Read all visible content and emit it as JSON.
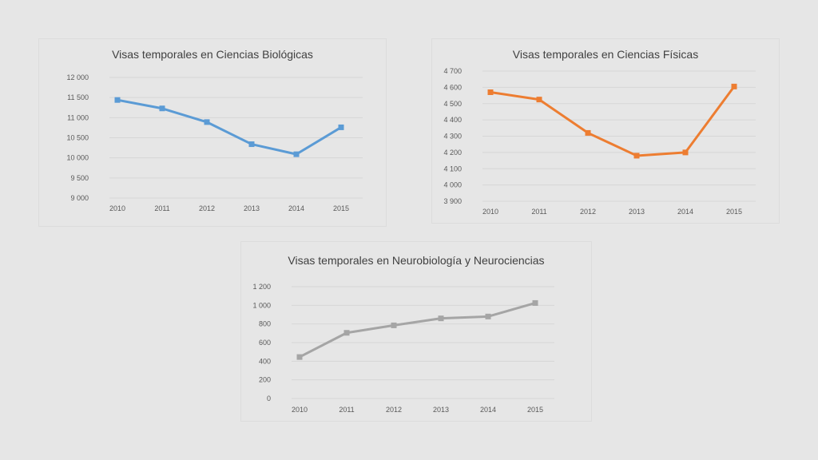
{
  "chart_data": [
    {
      "type": "line",
      "title": "Visas temporales en Ciencias Biológicas",
      "categories": [
        "2010",
        "2011",
        "2012",
        "2013",
        "2014",
        "2015"
      ],
      "series": [
        {
          "values": [
            11440,
            11230,
            10890,
            10340,
            10090,
            10760
          ]
        }
      ],
      "yticks": [
        "9 000",
        "9 500",
        "10 000",
        "10 500",
        "11 000",
        "11 500",
        "12 000"
      ],
      "ylim": [
        9000,
        12000
      ],
      "color": "#5b9bd5",
      "grid": true
    },
    {
      "type": "line",
      "title": "Visas temporales en Ciencias Físicas",
      "categories": [
        "2010",
        "2011",
        "2012",
        "2013",
        "2014",
        "2015"
      ],
      "series": [
        {
          "values": [
            4570,
            4525,
            4320,
            4180,
            4200,
            4605
          ]
        }
      ],
      "yticks": [
        "3 900",
        "4 000",
        "4 100",
        "4 200",
        "4 300",
        "4 400",
        "4 500",
        "4 600",
        "4 700"
      ],
      "ylim": [
        3900,
        4700
      ],
      "color": "#ed7d31",
      "grid": true
    },
    {
      "type": "line",
      "title": "Visas temporales en Neurobiología y Neurociencias",
      "categories": [
        "2010",
        "2011",
        "2012",
        "2013",
        "2014",
        "2015"
      ],
      "series": [
        {
          "values": [
            445,
            705,
            785,
            860,
            880,
            1025
          ]
        }
      ],
      "yticks": [
        "0",
        "200",
        "400",
        "600",
        "800",
        "1 000",
        "1 200"
      ],
      "ylim": [
        0,
        1200
      ],
      "color": "#a5a5a5",
      "grid": true
    }
  ]
}
